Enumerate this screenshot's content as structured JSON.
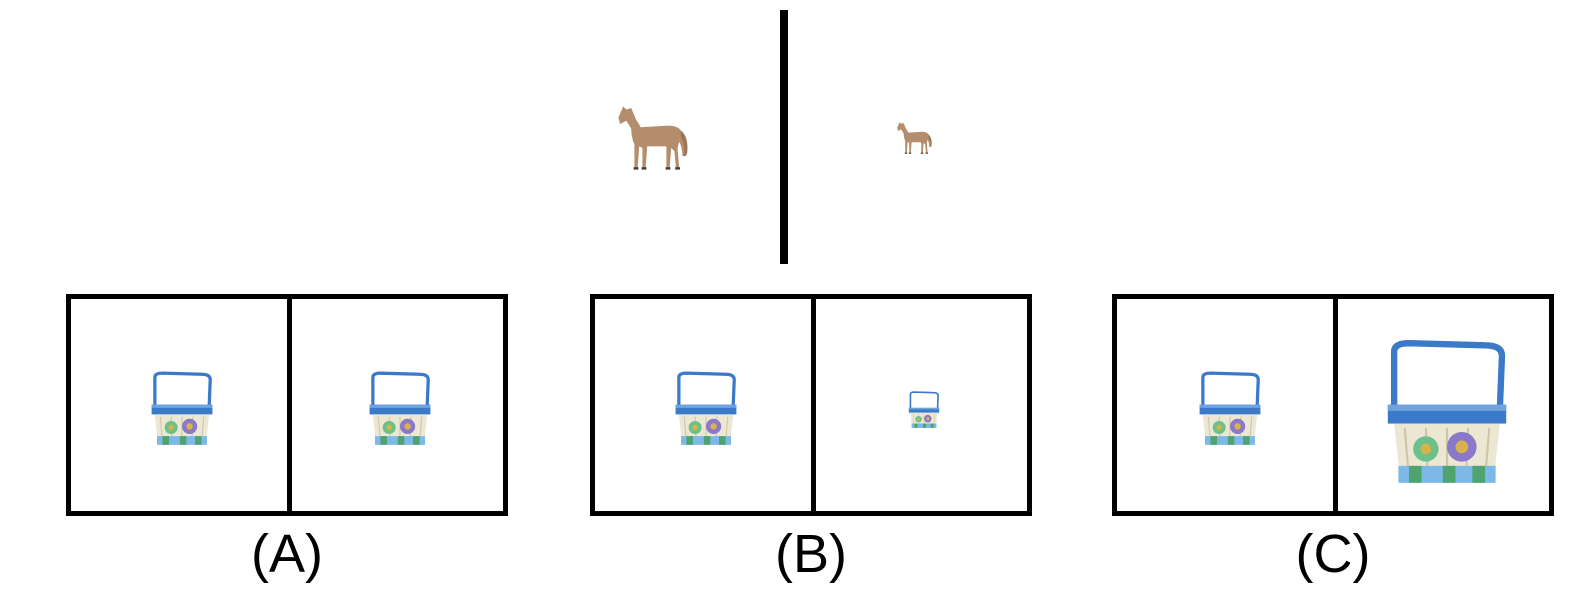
{
  "reference": {
    "object": "horse",
    "left_icon": "horse-icon",
    "right_icon": "horse-icon"
  },
  "options": [
    {
      "label": "(A)",
      "left_icon": "basket-icon",
      "right_icon": "basket-icon"
    },
    {
      "label": "(B)",
      "left_icon": "basket-icon",
      "right_icon": "basket-icon"
    },
    {
      "label": "(C)",
      "left_icon": "basket-icon",
      "right_icon": "basket-icon"
    }
  ],
  "colors": {
    "horse": "#b48e6c",
    "basket_band": "#3b79c9",
    "basket_weave": "#ece7d2",
    "flower_green": "#6cc08a",
    "flower_purple": "#8a78c8"
  }
}
